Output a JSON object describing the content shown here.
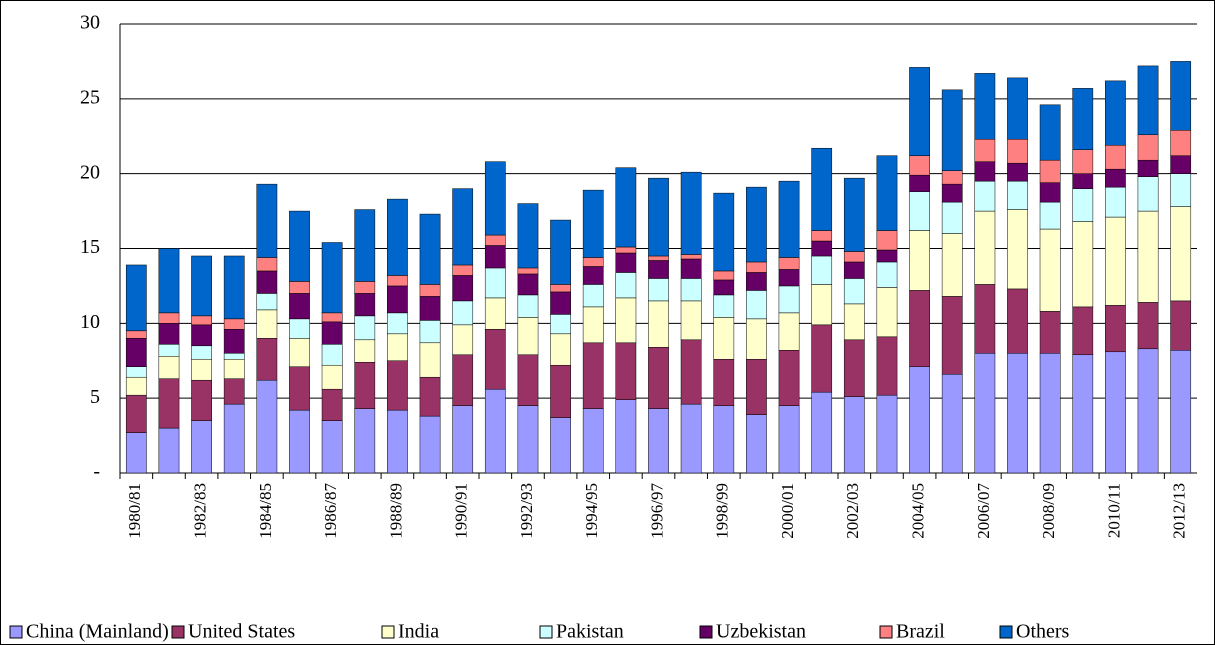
{
  "chart_data": {
    "type": "bar",
    "stacked": true,
    "categories": [
      "1980/81",
      null,
      "1982/83",
      null,
      "1984/85",
      null,
      "1986/87",
      null,
      "1988/89",
      null,
      "1990/91",
      null,
      "1992/93",
      null,
      "1994/95",
      null,
      "1996/97",
      null,
      "1998/99",
      null,
      "2000/01",
      null,
      "2002/03",
      null,
      "2004/05",
      null,
      "2006/07",
      null,
      "2008/09",
      null,
      "2010/11",
      null,
      "2012/13"
    ],
    "series": [
      {
        "name": "China (Mainland)",
        "color": "#9999ff",
        "values": [
          2.7,
          3.0,
          3.5,
          4.6,
          6.2,
          4.2,
          3.5,
          4.3,
          4.2,
          3.8,
          4.5,
          5.6,
          4.5,
          3.7,
          4.3,
          4.9,
          4.3,
          4.6,
          4.5,
          3.9,
          4.5,
          5.4,
          5.1,
          5.2,
          7.1,
          6.6,
          8.0,
          8.0,
          8.0,
          7.9,
          8.1,
          8.3,
          8.2
        ]
      },
      {
        "name": "United States",
        "color": "#993366",
        "values": [
          2.5,
          3.3,
          2.7,
          1.7,
          2.8,
          2.9,
          2.1,
          3.1,
          3.3,
          2.6,
          3.4,
          4.0,
          3.4,
          3.5,
          4.4,
          3.8,
          4.1,
          4.3,
          3.1,
          3.7,
          3.7,
          4.5,
          3.8,
          3.9,
          5.1,
          5.2,
          4.6,
          4.3,
          2.8,
          3.2,
          3.1,
          3.1,
          3.3
        ]
      },
      {
        "name": "India",
        "color": "#ffffcc",
        "values": [
          1.2,
          1.5,
          1.4,
          1.3,
          1.9,
          1.9,
          1.6,
          1.5,
          1.8,
          2.3,
          2.0,
          2.1,
          2.5,
          2.1,
          2.4,
          3.0,
          3.1,
          2.6,
          2.8,
          2.7,
          2.5,
          2.7,
          2.4,
          3.3,
          4.0,
          4.2,
          4.9,
          5.3,
          5.5,
          5.7,
          5.9,
          6.1,
          6.3
        ]
      },
      {
        "name": "Pakistan",
        "color": "#ccffff",
        "values": [
          0.7,
          0.8,
          0.9,
          0.4,
          1.1,
          1.3,
          1.4,
          1.6,
          1.4,
          1.5,
          1.6,
          2.0,
          1.5,
          1.3,
          1.5,
          1.7,
          1.5,
          1.5,
          1.5,
          1.9,
          1.8,
          1.9,
          1.7,
          1.7,
          2.6,
          2.1,
          2.0,
          1.9,
          1.8,
          2.2,
          2.0,
          2.3,
          2.2
        ]
      },
      {
        "name": "Uzbekistan",
        "color": "#660066",
        "values": [
          1.9,
          1.4,
          1.4,
          1.6,
          1.5,
          1.7,
          1.5,
          1.5,
          1.8,
          1.6,
          1.7,
          1.5,
          1.4,
          1.5,
          1.2,
          1.3,
          1.2,
          1.3,
          1.0,
          1.2,
          1.1,
          1.0,
          1.1,
          0.8,
          1.1,
          1.2,
          1.3,
          1.2,
          1.3,
          1.0,
          1.2,
          1.1,
          1.2
        ]
      },
      {
        "name": "Brazil",
        "color": "#ff8080",
        "values": [
          0.5,
          0.7,
          0.6,
          0.7,
          0.9,
          0.8,
          0.6,
          0.8,
          0.7,
          0.8,
          0.7,
          0.7,
          0.4,
          0.5,
          0.6,
          0.4,
          0.3,
          0.3,
          0.6,
          0.7,
          0.8,
          0.7,
          0.7,
          1.3,
          1.3,
          0.9,
          1.5,
          1.6,
          1.5,
          1.6,
          1.6,
          1.7,
          1.7
        ]
      },
      {
        "name": "Others",
        "color": "#0066cc",
        "values": [
          4.4,
          4.3,
          4.0,
          4.2,
          4.9,
          4.7,
          4.7,
          4.8,
          5.1,
          4.7,
          5.1,
          4.9,
          4.3,
          4.3,
          4.5,
          5.3,
          5.2,
          5.5,
          5.2,
          5.0,
          5.1,
          5.5,
          4.9,
          5.0,
          5.9,
          5.4,
          4.4,
          4.1,
          3.7,
          4.1,
          4.3,
          4.6,
          4.6
        ]
      }
    ],
    "ylim": [
      0,
      30
    ],
    "yticks": [
      {
        "value": 0,
        "label": "-"
      },
      5,
      10,
      15,
      20,
      25,
      30
    ],
    "grid": true,
    "legend": "bottom"
  }
}
